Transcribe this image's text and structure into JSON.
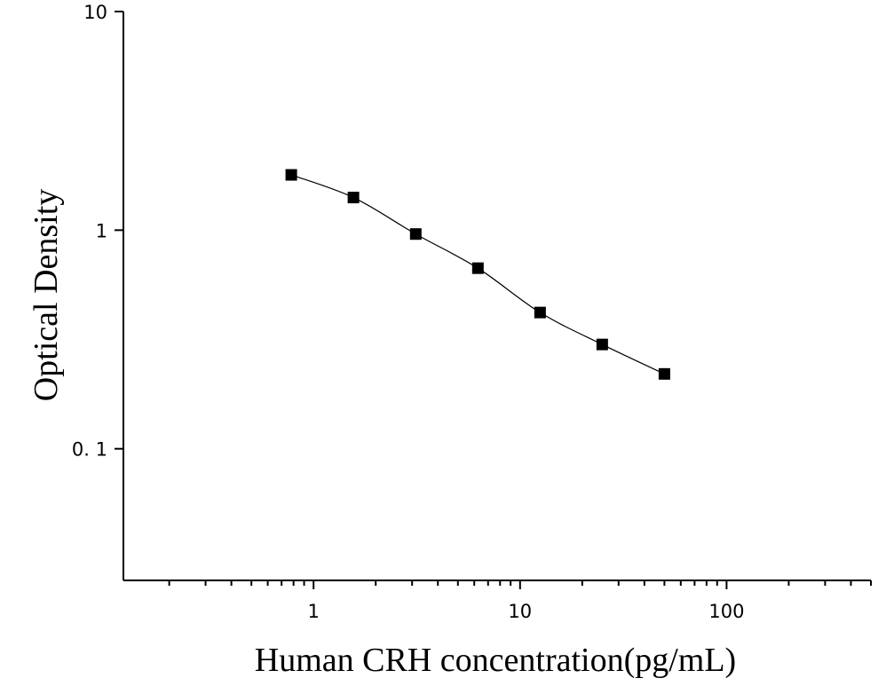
{
  "chart_data": {
    "type": "scatter",
    "xlabel": "Human CRH concentration(pg/mL)",
    "ylabel": "Optical Density",
    "x_scale": "log",
    "y_scale": "log",
    "xlim": [
      0.12,
      500
    ],
    "ylim": [
      0.025,
      10
    ],
    "x_ticks": [
      {
        "value": 1,
        "label": "1"
      },
      {
        "value": 10,
        "label": "10"
      },
      {
        "value": 100,
        "label": "100"
      }
    ],
    "y_ticks": [
      {
        "value": 10,
        "label": "10"
      },
      {
        "value": 1,
        "label": "1"
      },
      {
        "value": 0.1,
        "label": "0. 1"
      }
    ],
    "grid": false,
    "points": [
      {
        "x": 0.78,
        "y": 1.79
      },
      {
        "x": 1.56,
        "y": 1.41
      },
      {
        "x": 3.125,
        "y": 0.96
      },
      {
        "x": 6.25,
        "y": 0.67
      },
      {
        "x": 12.5,
        "y": 0.42
      },
      {
        "x": 25,
        "y": 0.3
      },
      {
        "x": 50,
        "y": 0.22
      }
    ],
    "fit_curve": true
  }
}
